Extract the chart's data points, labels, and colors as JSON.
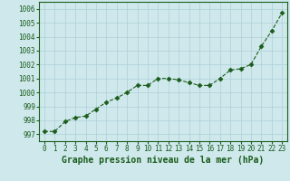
{
  "x": [
    0,
    1,
    2,
    3,
    4,
    5,
    6,
    7,
    8,
    9,
    10,
    11,
    12,
    13,
    14,
    15,
    16,
    17,
    18,
    19,
    20,
    21,
    22,
    23
  ],
  "y": [
    997.2,
    997.2,
    997.9,
    998.2,
    998.3,
    998.8,
    999.3,
    999.6,
    1000.0,
    1000.5,
    1000.5,
    1001.0,
    1001.0,
    1000.9,
    1000.7,
    1000.5,
    1000.5,
    1001.0,
    1001.6,
    1001.7,
    1002.0,
    1003.3,
    1004.4,
    1005.7
  ],
  "line_color": "#1a5c1a",
  "marker": "D",
  "marker_size": 2.5,
  "background_color": "#cee8ec",
  "grid_color": "#aed0d6",
  "xlabel": "Graphe pression niveau de la mer (hPa)",
  "xlabel_fontsize": 7,
  "yticks": [
    997,
    998,
    999,
    1000,
    1001,
    1002,
    1003,
    1004,
    1005,
    1006
  ],
  "xticks": [
    0,
    1,
    2,
    3,
    4,
    5,
    6,
    7,
    8,
    9,
    10,
    11,
    12,
    13,
    14,
    15,
    16,
    17,
    18,
    19,
    20,
    21,
    22,
    23
  ],
  "ylim": [
    996.5,
    1006.5
  ],
  "xlim": [
    -0.5,
    23.5
  ],
  "tick_fontsize": 5.5,
  "label_color": "#1a5c1a"
}
